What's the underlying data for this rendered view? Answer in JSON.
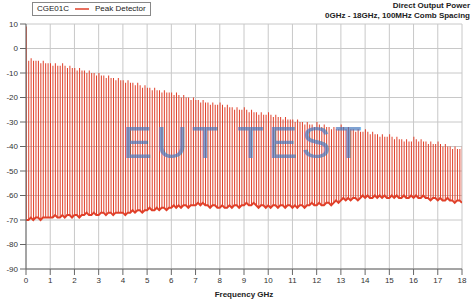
{
  "chart_data": {
    "type": "bar",
    "title": "Direct Output Power",
    "subtitle": "0GHz - 18GHz, 100MHz Comb Spacing",
    "x_label": "Frequency GHz",
    "annotations": [
      "CGE01C",
      "EUT TEST"
    ],
    "legend": "top-left",
    "grid": true,
    "xlim": [
      0,
      18
    ],
    "xticks": [
      0,
      1,
      2,
      3,
      4,
      5,
      6,
      7,
      8,
      9,
      10,
      11,
      12,
      13,
      14,
      15,
      16,
      17,
      18
    ],
    "ylim": [
      -90,
      10
    ],
    "yticks": [
      -90,
      -80,
      -70,
      -60,
      -50,
      -40,
      -30,
      -20,
      -10,
      0,
      10
    ],
    "x": [
      0,
      0.1,
      0.2,
      0.3,
      0.4,
      0.5,
      0.6,
      0.7,
      0.8,
      0.9,
      1,
      1.1,
      1.2,
      1.3,
      1.4,
      1.5,
      1.6,
      1.7,
      1.8,
      1.9,
      2,
      2.1,
      2.2,
      2.3,
      2.4,
      2.5,
      2.6,
      2.7,
      2.8,
      2.9,
      3,
      3.1,
      3.2,
      3.3,
      3.4,
      3.5,
      3.6,
      3.7,
      3.8,
      3.9,
      4,
      4.1,
      4.2,
      4.3,
      4.4,
      4.5,
      4.6,
      4.7,
      4.8,
      4.9,
      5,
      5.1,
      5.2,
      5.3,
      5.4,
      5.5,
      5.6,
      5.7,
      5.8,
      5.9,
      6,
      6.1,
      6.2,
      6.3,
      6.4,
      6.5,
      6.6,
      6.7,
      6.8,
      6.9,
      7,
      7.1,
      7.2,
      7.3,
      7.4,
      7.5,
      7.6,
      7.7,
      7.8,
      7.9,
      8,
      8.1,
      8.2,
      8.3,
      8.4,
      8.5,
      8.6,
      8.7,
      8.8,
      8.9,
      9,
      9.1,
      9.2,
      9.3,
      9.4,
      9.5,
      9.6,
      9.7,
      9.8,
      9.9,
      10,
      10.1,
      10.2,
      10.3,
      10.4,
      10.5,
      10.6,
      10.7,
      10.8,
      10.9,
      11,
      11.1,
      11.2,
      11.3,
      11.4,
      11.5,
      11.6,
      11.7,
      11.8,
      11.9,
      12,
      12.1,
      12.2,
      12.3,
      12.4,
      12.5,
      12.6,
      12.7,
      12.8,
      12.9,
      13,
      13.1,
      13.2,
      13.3,
      13.4,
      13.5,
      13.6,
      13.7,
      13.8,
      13.9,
      14,
      14.1,
      14.2,
      14.3,
      14.4,
      14.5,
      14.6,
      14.7,
      14.8,
      14.9,
      15,
      15.1,
      15.2,
      15.3,
      15.4,
      15.5,
      15.6,
      15.7,
      15.8,
      15.9,
      16,
      16.1,
      16.2,
      16.3,
      16.4,
      16.5,
      16.6,
      16.7,
      16.8,
      16.9,
      17,
      17.1,
      17.2,
      17.3,
      17.4,
      17.5,
      17.6,
      17.7,
      17.8,
      17.9,
      18
    ],
    "series": [
      {
        "name": "Peak Detector",
        "color": "#e0402a",
        "values": [
          9,
          -5,
          -4,
          -5,
          -5,
          -5,
          -6,
          -5,
          -6,
          -6,
          -6,
          -7,
          -6,
          -7,
          -7,
          -6,
          -7,
          -8,
          -7,
          -8,
          -8,
          -9,
          -8,
          -9,
          -9,
          -10,
          -9,
          -10,
          -10,
          -11,
          -10,
          -11,
          -11,
          -12,
          -11,
          -12,
          -12,
          -13,
          -12,
          -13,
          -13,
          -14,
          -13,
          -14,
          -14,
          -15,
          -14,
          -15,
          -16,
          -15,
          -16,
          -16,
          -17,
          -16,
          -17,
          -17,
          -18,
          -17,
          -18,
          -18,
          -18,
          -19,
          -18,
          -19,
          -20,
          -19,
          -20,
          -20,
          -21,
          -20,
          -21,
          -21,
          -22,
          -21,
          -22,
          -22,
          -23,
          -22,
          -23,
          -23,
          -22,
          -23,
          -24,
          -23,
          -24,
          -24,
          -25,
          -24,
          -25,
          -25,
          -24,
          -25,
          -26,
          -25,
          -26,
          -26,
          -27,
          -26,
          -27,
          -27,
          -26,
          -27,
          -28,
          -27,
          -28,
          -28,
          -29,
          -28,
          -29,
          -29,
          -29,
          -30,
          -29,
          -30,
          -30,
          -31,
          -30,
          -31,
          -31,
          -32,
          -30,
          -31,
          -32,
          -31,
          -32,
          -32,
          -33,
          -32,
          -33,
          -33,
          -31,
          -32,
          -33,
          -32,
          -33,
          -33,
          -34,
          -33,
          -34,
          -34,
          -33,
          -34,
          -35,
          -34,
          -35,
          -35,
          -36,
          -35,
          -36,
          -36,
          -35,
          -36,
          -37,
          -36,
          -37,
          -37,
          -38,
          -37,
          -38,
          -38,
          -36,
          -37,
          -38,
          -37,
          -38,
          -38,
          -39,
          -38,
          -39,
          -39,
          -38,
          -39,
          -40,
          -39,
          -40,
          -40,
          -41,
          -40,
          -41,
          -41,
          -40
        ],
        "floor": [
          -70,
          -70,
          -69,
          -70,
          -69,
          -69,
          -70,
          -69,
          -69,
          -69,
          -69,
          -69,
          -68,
          -69,
          -69,
          -68,
          -69,
          -68,
          -68,
          -69,
          -68,
          -68,
          -69,
          -68,
          -68,
          -67,
          -68,
          -68,
          -67,
          -68,
          -68,
          -67,
          -67,
          -68,
          -67,
          -67,
          -68,
          -67,
          -67,
          -67,
          -67,
          -68,
          -67,
          -67,
          -66,
          -67,
          -66,
          -66,
          -67,
          -66,
          -66,
          -65,
          -66,
          -66,
          -65,
          -66,
          -65,
          -65,
          -66,
          -65,
          -65,
          -64,
          -65,
          -64,
          -65,
          -64,
          -64,
          -65,
          -64,
          -64,
          -64,
          -63,
          -64,
          -63,
          -64,
          -64,
          -65,
          -64,
          -64,
          -65,
          -65,
          -64,
          -65,
          -65,
          -64,
          -65,
          -64,
          -64,
          -65,
          -64,
          -64,
          -63,
          -64,
          -64,
          -63,
          -64,
          -65,
          -64,
          -64,
          -65,
          -64,
          -65,
          -64,
          -64,
          -65,
          -64,
          -64,
          -65,
          -64,
          -64,
          -65,
          -64,
          -65,
          -64,
          -64,
          -65,
          -64,
          -64,
          -63,
          -64,
          -64,
          -63,
          -64,
          -64,
          -63,
          -63,
          -64,
          -63,
          -62,
          -63,
          -62,
          -61,
          -62,
          -61,
          -62,
          -61,
          -61,
          -62,
          -61,
          -60,
          -61,
          -60,
          -61,
          -61,
          -60,
          -61,
          -60,
          -61,
          -60,
          -61,
          -61,
          -60,
          -61,
          -60,
          -61,
          -61,
          -60,
          -61,
          -61,
          -60,
          -61,
          -60,
          -61,
          -61,
          -60,
          -61,
          -61,
          -62,
          -61,
          -61,
          -62,
          -61,
          -62,
          -62,
          -61,
          -62,
          -62,
          -63,
          -62,
          -62,
          -63
        ]
      }
    ]
  }
}
